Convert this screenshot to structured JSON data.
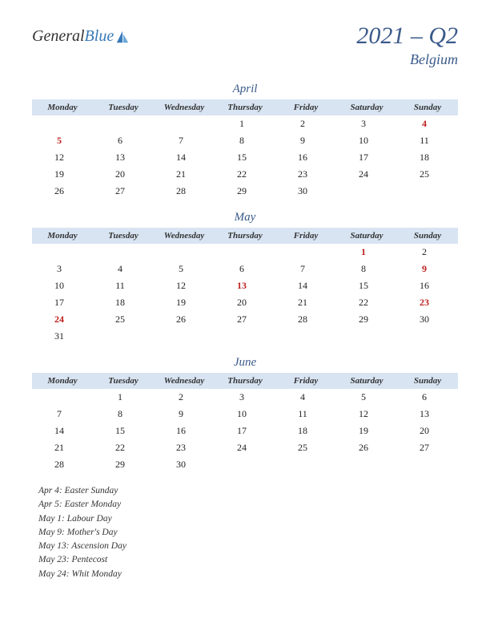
{
  "logo": {
    "word1": "General",
    "word2": "Blue"
  },
  "header": {
    "title": "2021 – Q2",
    "subtitle": "Belgium"
  },
  "dayHeaders": [
    "Monday",
    "Tuesday",
    "Wednesday",
    "Thursday",
    "Friday",
    "Saturday",
    "Sunday"
  ],
  "colors": {
    "header_bg": "#d8e4f2",
    "accent": "#3a5a8a",
    "holiday": "#c02020",
    "text": "#222222",
    "background": "#ffffff"
  },
  "typography": {
    "title_fontsize": 30,
    "subtitle_fontsize": 18,
    "month_fontsize": 15,
    "header_fontsize": 11,
    "cell_fontsize": 12,
    "holiday_list_fontsize": 11.5,
    "font_family": "Georgia serif italic"
  },
  "months": [
    {
      "name": "April",
      "weeks": [
        [
          null,
          null,
          null,
          {
            "d": 1
          },
          {
            "d": 2
          },
          {
            "d": 3
          },
          {
            "d": 4,
            "h": true
          }
        ],
        [
          {
            "d": 5,
            "h": true
          },
          {
            "d": 6
          },
          {
            "d": 7
          },
          {
            "d": 8
          },
          {
            "d": 9
          },
          {
            "d": 10
          },
          {
            "d": 11
          }
        ],
        [
          {
            "d": 12
          },
          {
            "d": 13
          },
          {
            "d": 14
          },
          {
            "d": 15
          },
          {
            "d": 16
          },
          {
            "d": 17
          },
          {
            "d": 18
          }
        ],
        [
          {
            "d": 19
          },
          {
            "d": 20
          },
          {
            "d": 21
          },
          {
            "d": 22
          },
          {
            "d": 23
          },
          {
            "d": 24
          },
          {
            "d": 25
          }
        ],
        [
          {
            "d": 26
          },
          {
            "d": 27
          },
          {
            "d": 28
          },
          {
            "d": 29
          },
          {
            "d": 30
          },
          null,
          null
        ]
      ]
    },
    {
      "name": "May",
      "weeks": [
        [
          null,
          null,
          null,
          null,
          null,
          {
            "d": 1,
            "h": true
          },
          {
            "d": 2
          }
        ],
        [
          {
            "d": 3
          },
          {
            "d": 4
          },
          {
            "d": 5
          },
          {
            "d": 6
          },
          {
            "d": 7
          },
          {
            "d": 8
          },
          {
            "d": 9,
            "h": true
          }
        ],
        [
          {
            "d": 10
          },
          {
            "d": 11
          },
          {
            "d": 12
          },
          {
            "d": 13,
            "h": true
          },
          {
            "d": 14
          },
          {
            "d": 15
          },
          {
            "d": 16
          }
        ],
        [
          {
            "d": 17
          },
          {
            "d": 18
          },
          {
            "d": 19
          },
          {
            "d": 20
          },
          {
            "d": 21
          },
          {
            "d": 22
          },
          {
            "d": 23,
            "h": true
          }
        ],
        [
          {
            "d": 24,
            "h": true
          },
          {
            "d": 25
          },
          {
            "d": 26
          },
          {
            "d": 27
          },
          {
            "d": 28
          },
          {
            "d": 29
          },
          {
            "d": 30
          }
        ],
        [
          {
            "d": 31
          },
          null,
          null,
          null,
          null,
          null,
          null
        ]
      ]
    },
    {
      "name": "June",
      "weeks": [
        [
          null,
          {
            "d": 1
          },
          {
            "d": 2
          },
          {
            "d": 3
          },
          {
            "d": 4
          },
          {
            "d": 5
          },
          {
            "d": 6
          }
        ],
        [
          {
            "d": 7
          },
          {
            "d": 8
          },
          {
            "d": 9
          },
          {
            "d": 10
          },
          {
            "d": 11
          },
          {
            "d": 12
          },
          {
            "d": 13
          }
        ],
        [
          {
            "d": 14
          },
          {
            "d": 15
          },
          {
            "d": 16
          },
          {
            "d": 17
          },
          {
            "d": 18
          },
          {
            "d": 19
          },
          {
            "d": 20
          }
        ],
        [
          {
            "d": 21
          },
          {
            "d": 22
          },
          {
            "d": 23
          },
          {
            "d": 24
          },
          {
            "d": 25
          },
          {
            "d": 26
          },
          {
            "d": 27
          }
        ],
        [
          {
            "d": 28
          },
          {
            "d": 29
          },
          {
            "d": 30
          },
          null,
          null,
          null,
          null
        ]
      ]
    }
  ],
  "holidayList": [
    "Apr 4: Easter Sunday",
    "Apr 5: Easter Monday",
    "May 1: Labour Day",
    "May 9: Mother's Day",
    "May 13: Ascension Day",
    "May 23: Pentecost",
    "May 24: Whit Monday"
  ]
}
